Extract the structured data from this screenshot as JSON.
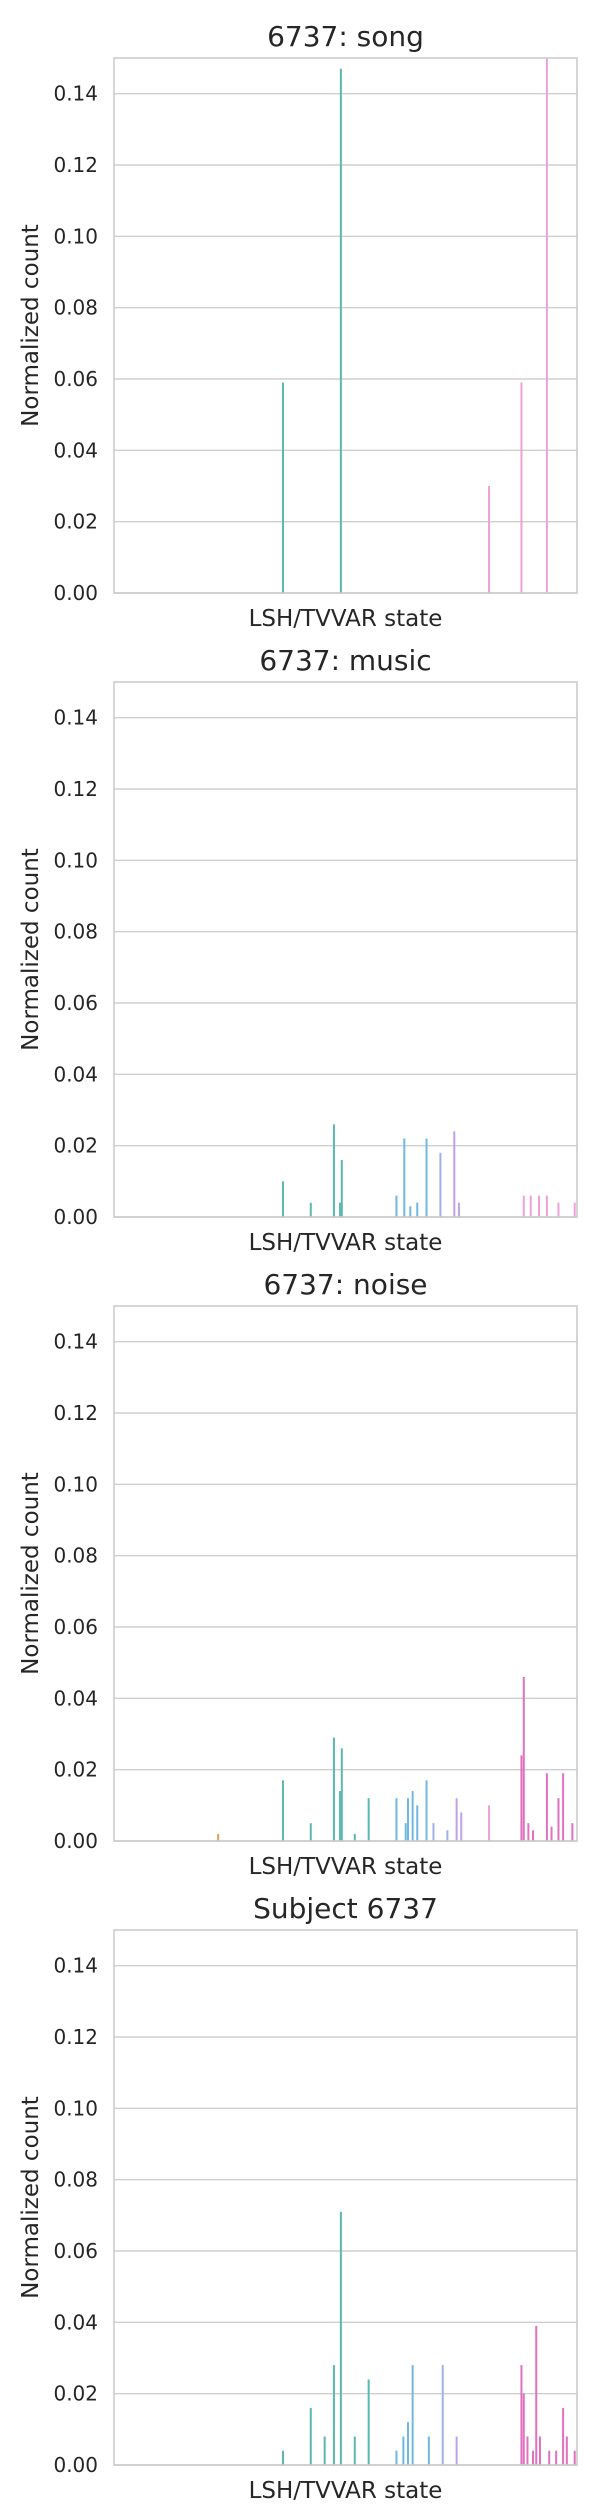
{
  "chart_data": [
    {
      "type": "bar",
      "title": "6737: song",
      "xlabel": "LSH/TVVAR state",
      "ylabel": "Normalized count",
      "ylim": [
        0,
        0.15
      ],
      "yticks": [
        "0.00",
        "0.02",
        "0.04",
        "0.06",
        "0.08",
        "0.10",
        "0.12",
        "0.14"
      ],
      "grid": true,
      "bars": [
        {
          "x": 0.365,
          "value": 0.059,
          "color": "#5bb8b0"
        },
        {
          "x": 0.49,
          "value": 0.147,
          "color": "#5bb8b0"
        },
        {
          "x": 0.81,
          "value": 0.03,
          "color": "#f0a0d8"
        },
        {
          "x": 0.88,
          "value": 0.059,
          "color": "#f0a0d8"
        },
        {
          "x": 0.935,
          "value": 0.15,
          "color": "#f0a0d8"
        }
      ]
    },
    {
      "type": "bar",
      "title": "6737: music",
      "xlabel": "LSH/TVVAR state",
      "ylabel": "Normalized count",
      "ylim": [
        0,
        0.15
      ],
      "yticks": [
        "0.00",
        "0.02",
        "0.04",
        "0.06",
        "0.08",
        "0.10",
        "0.12",
        "0.14"
      ],
      "grid": true,
      "bars": [
        {
          "x": 0.365,
          "value": 0.01,
          "color": "#5bb8b0"
        },
        {
          "x": 0.425,
          "value": 0.004,
          "color": "#5bb8b0"
        },
        {
          "x": 0.475,
          "value": 0.026,
          "color": "#5bb8b0"
        },
        {
          "x": 0.488,
          "value": 0.004,
          "color": "#5bb8b0"
        },
        {
          "x": 0.492,
          "value": 0.016,
          "color": "#5bb8b0"
        },
        {
          "x": 0.61,
          "value": 0.006,
          "color": "#6fb8e0"
        },
        {
          "x": 0.627,
          "value": 0.022,
          "color": "#6fb8e0"
        },
        {
          "x": 0.64,
          "value": 0.003,
          "color": "#6fb8e0"
        },
        {
          "x": 0.655,
          "value": 0.004,
          "color": "#6fb8e0"
        },
        {
          "x": 0.675,
          "value": 0.022,
          "color": "#6fb8e0"
        },
        {
          "x": 0.705,
          "value": 0.018,
          "color": "#a0b0e8"
        },
        {
          "x": 0.735,
          "value": 0.024,
          "color": "#c0a0e8"
        },
        {
          "x": 0.745,
          "value": 0.004,
          "color": "#c0a0e8"
        },
        {
          "x": 0.885,
          "value": 0.006,
          "color": "#f0a0d8"
        },
        {
          "x": 0.9,
          "value": 0.006,
          "color": "#f0a0d8"
        },
        {
          "x": 0.918,
          "value": 0.006,
          "color": "#f0a0d8"
        },
        {
          "x": 0.935,
          "value": 0.006,
          "color": "#f0a0d8"
        },
        {
          "x": 0.96,
          "value": 0.004,
          "color": "#f0a0d8"
        },
        {
          "x": 0.995,
          "value": 0.004,
          "color": "#f0a0d8"
        }
      ]
    },
    {
      "type": "bar",
      "title": "6737: noise",
      "xlabel": "LSH/TVVAR state",
      "ylabel": "Normalized count",
      "ylim": [
        0,
        0.15
      ],
      "yticks": [
        "0.00",
        "0.02",
        "0.04",
        "0.06",
        "0.08",
        "0.10",
        "0.12",
        "0.14"
      ],
      "grid": true,
      "bars": [
        {
          "x": 0.225,
          "value": 0.002,
          "color": "#e0a060"
        },
        {
          "x": 0.365,
          "value": 0.017,
          "color": "#5bb8b0"
        },
        {
          "x": 0.425,
          "value": 0.005,
          "color": "#5bb8b0"
        },
        {
          "x": 0.475,
          "value": 0.029,
          "color": "#5bb8b0"
        },
        {
          "x": 0.488,
          "value": 0.014,
          "color": "#5bb8b0"
        },
        {
          "x": 0.492,
          "value": 0.026,
          "color": "#5bb8b0"
        },
        {
          "x": 0.52,
          "value": 0.002,
          "color": "#5bb8b0"
        },
        {
          "x": 0.55,
          "value": 0.012,
          "color": "#5bb8b0"
        },
        {
          "x": 0.61,
          "value": 0.012,
          "color": "#6fb8e0"
        },
        {
          "x": 0.63,
          "value": 0.005,
          "color": "#6fb8e0"
        },
        {
          "x": 0.635,
          "value": 0.012,
          "color": "#6fb8e0"
        },
        {
          "x": 0.645,
          "value": 0.014,
          "color": "#6fb8e0"
        },
        {
          "x": 0.655,
          "value": 0.01,
          "color": "#6fb8e0"
        },
        {
          "x": 0.675,
          "value": 0.017,
          "color": "#6fb8e0"
        },
        {
          "x": 0.69,
          "value": 0.005,
          "color": "#a0b0e8"
        },
        {
          "x": 0.72,
          "value": 0.003,
          "color": "#a0b0e8"
        },
        {
          "x": 0.74,
          "value": 0.012,
          "color": "#c0a0e8"
        },
        {
          "x": 0.75,
          "value": 0.008,
          "color": "#c0a0e8"
        },
        {
          "x": 0.81,
          "value": 0.01,
          "color": "#f0a0d8"
        },
        {
          "x": 0.88,
          "value": 0.024,
          "color": "#e070c0"
        },
        {
          "x": 0.885,
          "value": 0.046,
          "color": "#e070c0"
        },
        {
          "x": 0.895,
          "value": 0.005,
          "color": "#e070c0"
        },
        {
          "x": 0.905,
          "value": 0.003,
          "color": "#e070c0"
        },
        {
          "x": 0.935,
          "value": 0.019,
          "color": "#e070c0"
        },
        {
          "x": 0.945,
          "value": 0.004,
          "color": "#e070c0"
        },
        {
          "x": 0.96,
          "value": 0.012,
          "color": "#e070c0"
        },
        {
          "x": 0.97,
          "value": 0.019,
          "color": "#e070c0"
        },
        {
          "x": 0.99,
          "value": 0.005,
          "color": "#e070c0"
        }
      ]
    },
    {
      "type": "bar",
      "title": "Subject 6737",
      "xlabel": "LSH/TVVAR state",
      "ylabel": "Normalized count",
      "ylim": [
        0,
        0.15
      ],
      "yticks": [
        "0.00",
        "0.02",
        "0.04",
        "0.06",
        "0.08",
        "0.10",
        "0.12",
        "0.14"
      ],
      "grid": true,
      "bars": [
        {
          "x": 0.365,
          "value": 0.004,
          "color": "#5bb8b0"
        },
        {
          "x": 0.425,
          "value": 0.016,
          "color": "#5bb8b0"
        },
        {
          "x": 0.455,
          "value": 0.008,
          "color": "#5bb8b0"
        },
        {
          "x": 0.475,
          "value": 0.028,
          "color": "#5bb8b0"
        },
        {
          "x": 0.49,
          "value": 0.071,
          "color": "#5bb8b0"
        },
        {
          "x": 0.52,
          "value": 0.008,
          "color": "#5bb8b0"
        },
        {
          "x": 0.55,
          "value": 0.024,
          "color": "#5bb8b0"
        },
        {
          "x": 0.61,
          "value": 0.004,
          "color": "#6fb8e0"
        },
        {
          "x": 0.625,
          "value": 0.008,
          "color": "#6fb8e0"
        },
        {
          "x": 0.635,
          "value": 0.012,
          "color": "#6fb8e0"
        },
        {
          "x": 0.645,
          "value": 0.028,
          "color": "#6fb8e0"
        },
        {
          "x": 0.68,
          "value": 0.008,
          "color": "#6fb8e0"
        },
        {
          "x": 0.71,
          "value": 0.028,
          "color": "#a0b0e8"
        },
        {
          "x": 0.74,
          "value": 0.008,
          "color": "#c0a0e8"
        },
        {
          "x": 0.88,
          "value": 0.028,
          "color": "#e070c0"
        },
        {
          "x": 0.885,
          "value": 0.02,
          "color": "#e070c0"
        },
        {
          "x": 0.893,
          "value": 0.008,
          "color": "#e070c0"
        },
        {
          "x": 0.905,
          "value": 0.004,
          "color": "#e070c0"
        },
        {
          "x": 0.912,
          "value": 0.039,
          "color": "#e070c0"
        },
        {
          "x": 0.92,
          "value": 0.008,
          "color": "#e070c0"
        },
        {
          "x": 0.94,
          "value": 0.004,
          "color": "#e070c0"
        },
        {
          "x": 0.955,
          "value": 0.004,
          "color": "#e070c0"
        },
        {
          "x": 0.97,
          "value": 0.016,
          "color": "#e070c0"
        },
        {
          "x": 0.978,
          "value": 0.008,
          "color": "#e070c0"
        },
        {
          "x": 0.995,
          "value": 0.004,
          "color": "#e070c0"
        }
      ]
    }
  ]
}
